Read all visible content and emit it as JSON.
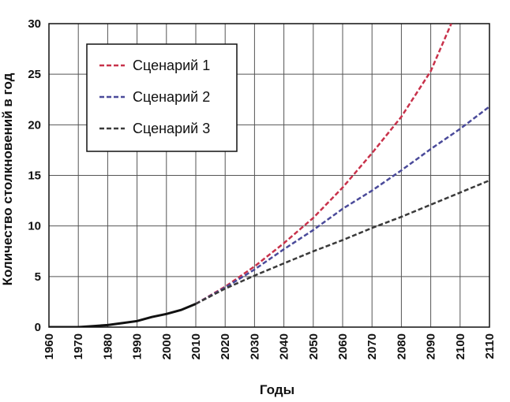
{
  "chart_data": {
    "type": "line",
    "xlabel": "Годы",
    "ylabel": "Количество столкновений в год",
    "xlim": [
      1960,
      2110
    ],
    "ylim": [
      0,
      30
    ],
    "x_ticks": [
      "1960",
      "1970",
      "1980",
      "1990",
      "2000",
      "2010",
      "2020",
      "2030",
      "2040",
      "2050",
      "2060",
      "2070",
      "2080",
      "2090",
      "2100",
      "2110"
    ],
    "y_ticks": [
      "0",
      "5",
      "10",
      "15",
      "20",
      "25",
      "30"
    ],
    "grid": true,
    "legend_position": "top-left",
    "historical": {
      "color": "#111111",
      "x": [
        1960,
        1970,
        1975,
        1980,
        1985,
        1990,
        1995,
        2000,
        2005,
        2010
      ],
      "y": [
        0,
        0,
        0.1,
        0.2,
        0.4,
        0.6,
        1.0,
        1.3,
        1.7,
        2.3
      ]
    },
    "series": [
      {
        "name": "Сценарий 1",
        "color": "#c8324b",
        "x": [
          2010,
          2020,
          2030,
          2040,
          2050,
          2060,
          2070,
          2080,
          2090,
          2097
        ],
        "y": [
          2.3,
          4.0,
          6.0,
          8.3,
          10.8,
          13.8,
          17.2,
          20.8,
          25.3,
          30.0
        ]
      },
      {
        "name": "Сценарий 2",
        "color": "#4a4a9a",
        "x": [
          2010,
          2020,
          2030,
          2040,
          2050,
          2060,
          2070,
          2080,
          2090,
          2100,
          2110
        ],
        "y": [
          2.3,
          3.9,
          5.7,
          7.7,
          9.6,
          11.7,
          13.5,
          15.5,
          17.6,
          19.6,
          21.8
        ]
      },
      {
        "name": "Сценарий 3",
        "color": "#3a3a3a",
        "x": [
          2010,
          2020,
          2030,
          2040,
          2050,
          2060,
          2070,
          2080,
          2090,
          2100,
          2110
        ],
        "y": [
          2.3,
          3.8,
          5.1,
          6.3,
          7.5,
          8.6,
          9.8,
          10.9,
          12.1,
          13.3,
          14.5
        ]
      }
    ]
  }
}
